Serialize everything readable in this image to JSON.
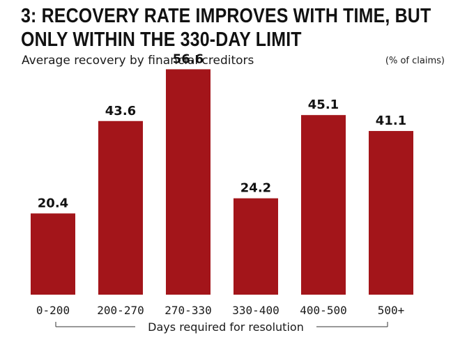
{
  "title_lines": [
    "3: RECOVERY RATE IMPROVES WITH TIME, BUT",
    "ONLY WITHIN THE 330-DAY LIMIT"
  ],
  "subtitle": "Average recovery by financial creditors",
  "unit": "(% of claims)",
  "colors": {
    "bar": "#a3151a",
    "text": "#111111",
    "axis": "#333333"
  },
  "chart_data": {
    "type": "bar",
    "title": "3: RECOVERY RATE IMPROVES WITH TIME, BUT ONLY WITHIN THE 330-DAY LIMIT",
    "subtitle": "Average recovery by financial creditors",
    "xlabel": "Days required for resolution",
    "ylabel": "",
    "unit": "(% of claims)",
    "categories": [
      "0-200",
      "200-270",
      "270-330",
      "330-400",
      "400-500",
      "500+"
    ],
    "values": [
      20.4,
      43.6,
      56.6,
      24.2,
      45.1,
      41.1
    ],
    "value_labels": [
      "20.4",
      "43.6",
      "56.6",
      "24.2",
      "45.1",
      "41.1"
    ],
    "ylim": [
      0,
      60
    ],
    "grid": false,
    "legend": "none"
  }
}
